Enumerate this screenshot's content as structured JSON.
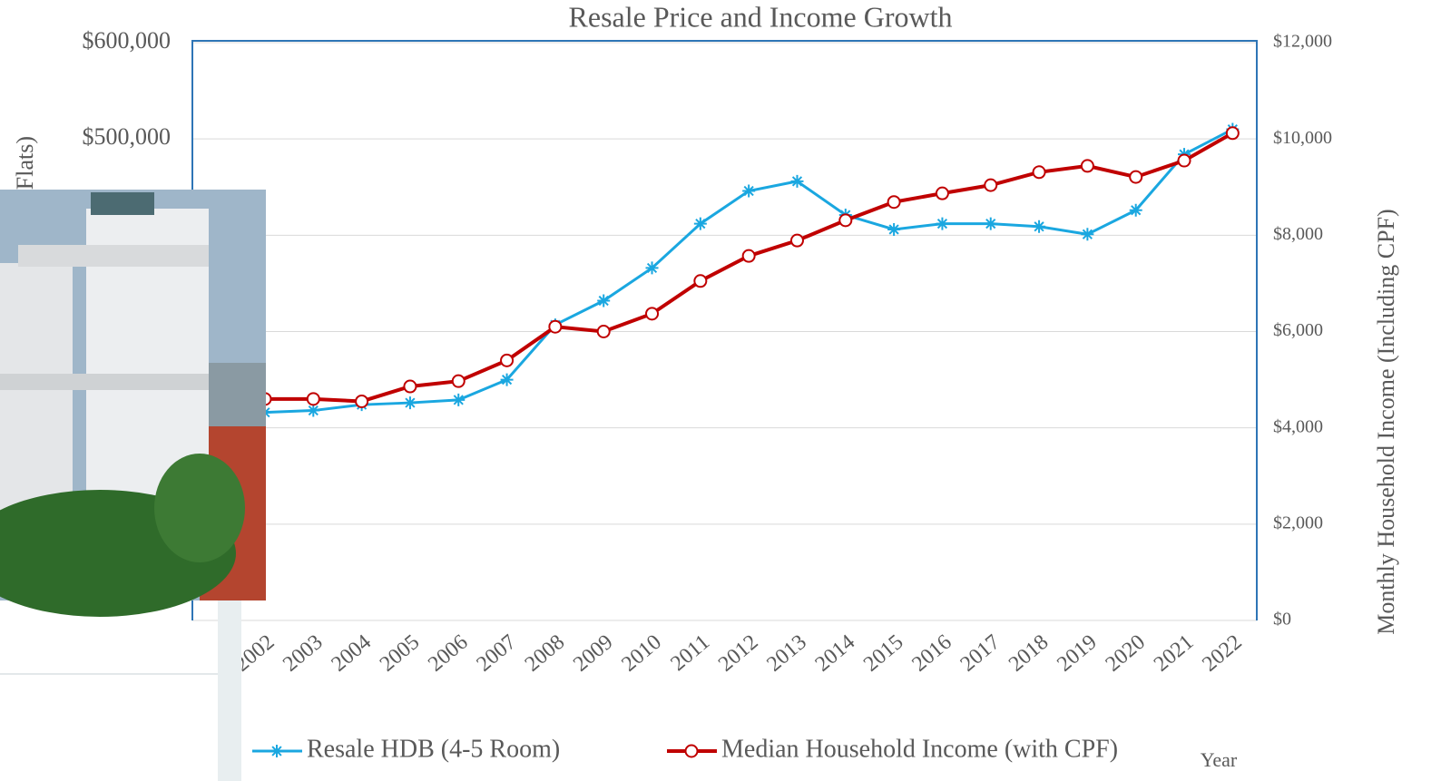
{
  "chart_data": {
    "type": "line",
    "title": "Resale Price and Income Growth",
    "ylabel": "Flats)",
    "y2label": "Monthly Household Income (Including CPF)",
    "xlabel": "Year",
    "categories": [
      "2002",
      "2003",
      "2004",
      "2005",
      "2006",
      "2007",
      "2008",
      "2009",
      "2010",
      "2011",
      "2012",
      "2013",
      "2014",
      "2015",
      "2016",
      "2017",
      "2018",
      "2019",
      "2020",
      "2021",
      "2022"
    ],
    "series": [
      {
        "name": "Resale HDB (4-5 Room)",
        "color": "#1aa7e0",
        "marker": "star",
        "axis": "y",
        "values": [
          216000,
          218000,
          224000,
          226000,
          229000,
          250000,
          307000,
          332000,
          366000,
          412000,
          446000,
          456000,
          421000,
          406000,
          412000,
          412000,
          409000,
          401000,
          426000,
          484000,
          510000
        ]
      },
      {
        "name": "Median Household Income (with CPF)",
        "color": "#c00000",
        "marker": "circle",
        "axis": "y2",
        "values": [
          4600,
          4600,
          4550,
          4860,
          4970,
          5400,
          6100,
          6000,
          6370,
          7050,
          7570,
          7890,
          8310,
          8690,
          8870,
          9040,
          9310,
          9440,
          9210,
          9550,
          10120
        ]
      }
    ],
    "ylim": [
      0,
      600000
    ],
    "yticks": [
      {
        "value": 500000,
        "label": "$500,000"
      },
      {
        "value": 600000,
        "label": "$600,000"
      }
    ],
    "y2lim": [
      0,
      12000
    ],
    "y2ticks": [
      {
        "value": 0,
        "label": "$0"
      },
      {
        "value": 2000,
        "label": "$2,000"
      },
      {
        "value": 4000,
        "label": "$4,000"
      },
      {
        "value": 6000,
        "label": "$6,000"
      },
      {
        "value": 8000,
        "label": "$8,000"
      },
      {
        "value": 10000,
        "label": "$10,000"
      },
      {
        "value": 12000,
        "label": "$12,000"
      }
    ],
    "grid": true,
    "legend": "bottom"
  }
}
